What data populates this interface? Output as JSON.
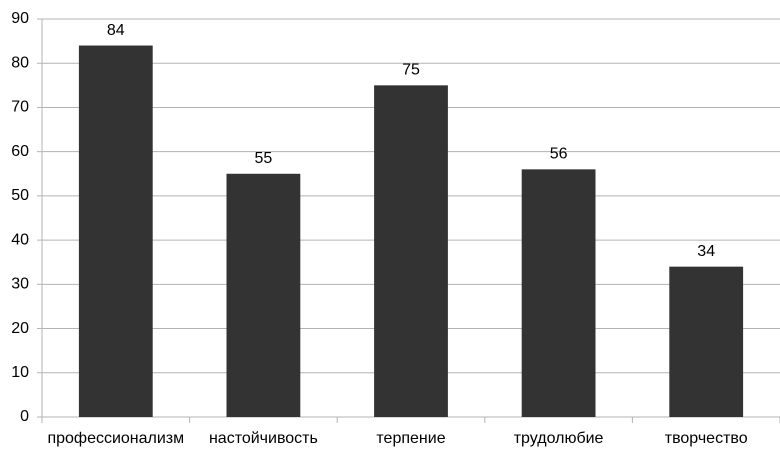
{
  "chart_data": {
    "type": "bar",
    "categories": [
      "профессионализм",
      "настойчивость",
      "терпение",
      "трудолюбие",
      "творчество"
    ],
    "values": [
      84,
      55,
      75,
      56,
      34
    ],
    "color": "#333333",
    "ylim": [
      0,
      90
    ],
    "yticks": [
      0,
      10,
      20,
      30,
      40,
      50,
      60,
      70,
      80,
      90
    ],
    "grid": true
  }
}
